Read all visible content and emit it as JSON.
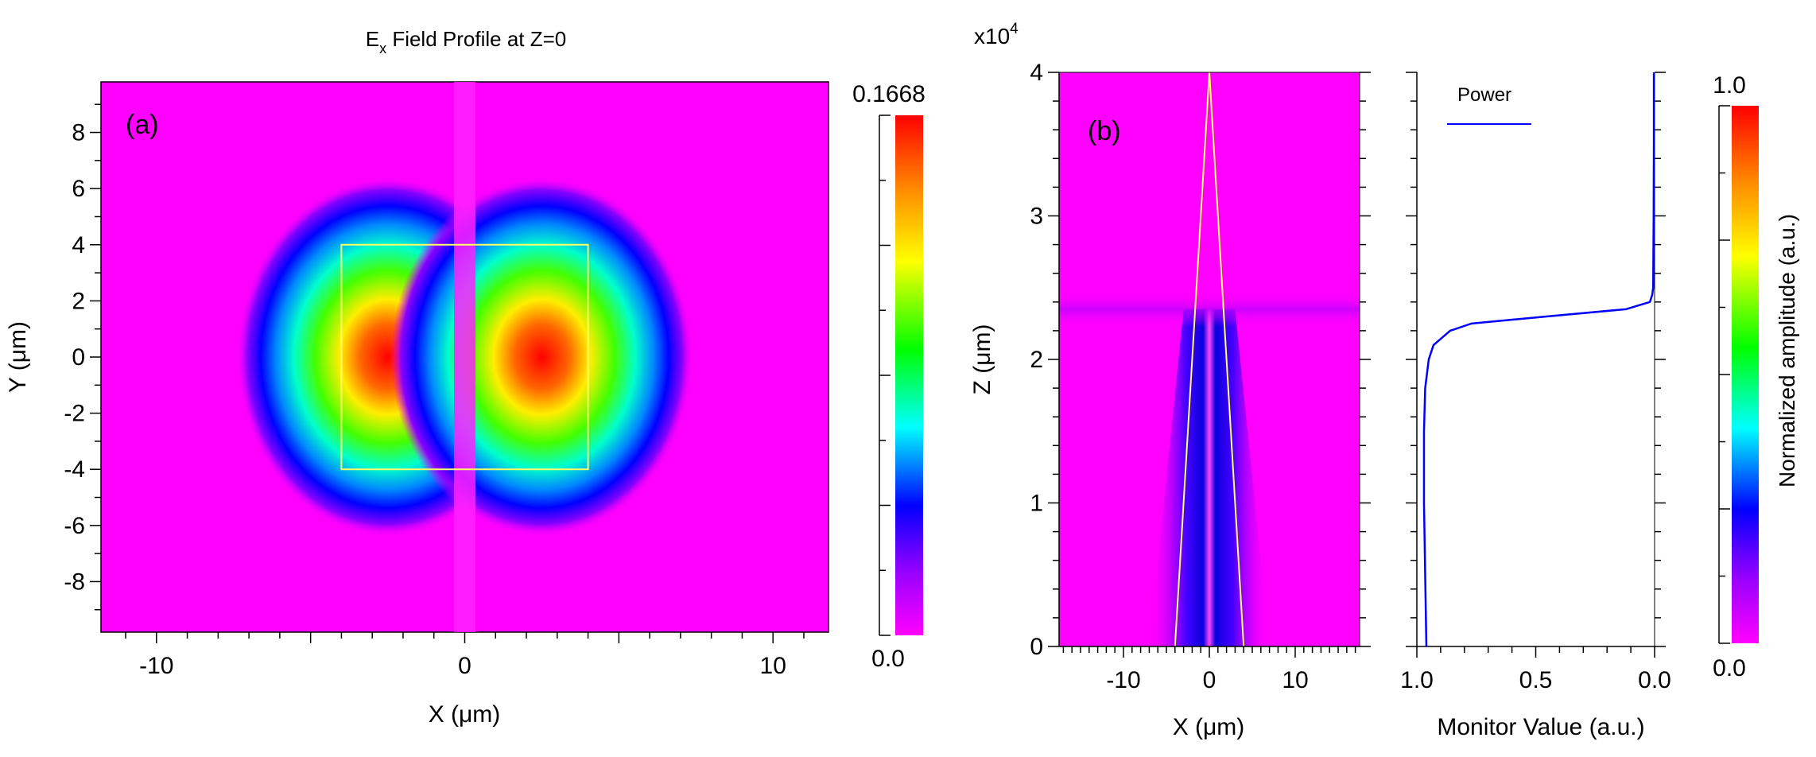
{
  "chart_data": [
    {
      "panel": "(a)",
      "type": "heatmap",
      "title": "E",
      "title_subscript": "x",
      "title_suffix": " Field Profile at Z=0",
      "xlabel": "X (μm)",
      "ylabel": "Y (μm)",
      "xlim": [
        -11.8,
        11.8
      ],
      "ylim": [
        -9.8,
        9.8
      ],
      "xticks": [
        -10,
        0,
        10
      ],
      "xtick_labels": [
        "-10",
        "0",
        "10"
      ],
      "yticks": [
        -8,
        -6,
        -4,
        -2,
        0,
        2,
        4,
        6,
        8
      ],
      "ytick_labels": [
        "-8",
        "-6",
        "-4",
        "-2",
        "0",
        "2",
        "4",
        "6",
        "8"
      ],
      "waveguide_box": {
        "x": [
          -4,
          4
        ],
        "y": [
          -4,
          4
        ]
      },
      "lobes": [
        {
          "x": -2.5,
          "y": 0,
          "peak": 0.1668
        },
        {
          "x": 2.5,
          "y": 0,
          "peak": 0.1668
        }
      ],
      "colorbar": {
        "min": 0.0,
        "max": 0.1668,
        "min_label": "0.0",
        "max_label": "0.1668"
      }
    },
    {
      "panel": "(b)",
      "type": "heatmap",
      "xlabel": "X (μm)",
      "ylabel": "Z (μm)",
      "y_multiplier": "x10",
      "y_multiplier_exp": "4",
      "xlim": [
        -17.5,
        17.5
      ],
      "ylim": [
        0,
        4
      ],
      "xticks": [
        -10,
        0,
        10
      ],
      "xtick_labels": [
        "-10",
        "0",
        "10"
      ],
      "yticks": [
        0,
        1,
        2,
        3,
        4
      ],
      "ytick_labels": [
        "0",
        "1",
        "2",
        "3",
        "4"
      ],
      "taper": {
        "x_half_width_start": 4,
        "x_half_width_end": 0,
        "z_start": 0,
        "z_end": 4
      },
      "field_cutoff_z": 2.35
    },
    {
      "panel": "monitor",
      "type": "line",
      "xlabel": "Monitor Value (a.u.)",
      "xlim": [
        1.0,
        0.0
      ],
      "xticks": [
        1.0,
        0.5,
        0.0
      ],
      "xtick_labels": [
        "1.0",
        "0.5",
        "0.0"
      ],
      "ylim": [
        0,
        4
      ],
      "series": [
        {
          "name": "Power",
          "color": "#0000ff",
          "z": [
            0,
            0.5,
            1.0,
            1.5,
            1.8,
            2.0,
            2.1,
            2.2,
            2.25,
            2.3,
            2.35,
            2.4,
            2.45,
            2.5,
            3.0,
            3.5,
            4.0
          ],
          "values": [
            0.96,
            0.965,
            0.97,
            0.97,
            0.965,
            0.95,
            0.93,
            0.86,
            0.77,
            0.45,
            0.12,
            0.02,
            0.01,
            0.006,
            0.004,
            0.003,
            0.003
          ]
        }
      ]
    },
    {
      "panel": "colorbar-b",
      "type": "heatmap",
      "label": "Normalized amplitude (a.u.)",
      "min": 0.0,
      "max": 1.0,
      "min_label": "0.0",
      "max_label": "1.0"
    }
  ]
}
